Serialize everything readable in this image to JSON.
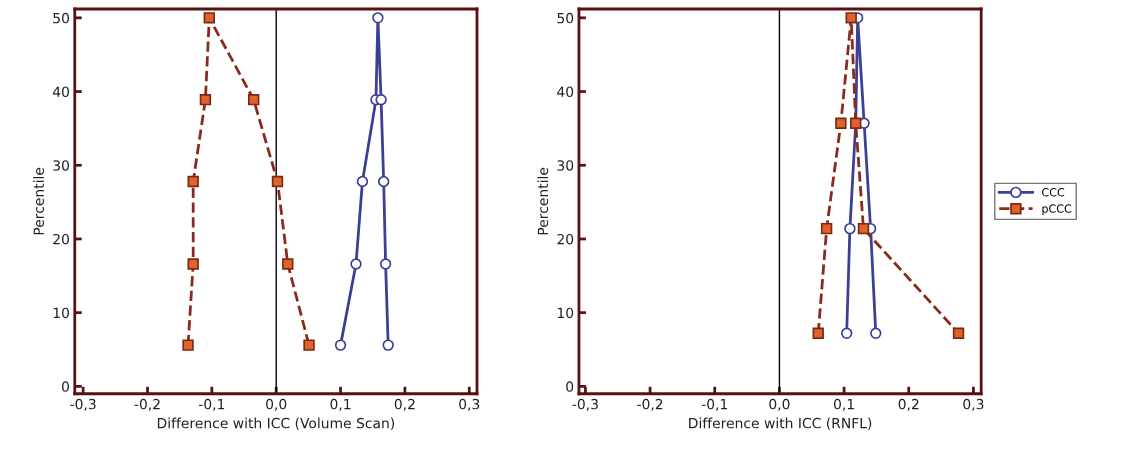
{
  "chart_data": [
    {
      "type": "line",
      "xlabel": "Difference with ICC (Volume Scan)",
      "ylabel": "Percentile",
      "xlim": [
        -0.313,
        0.312
      ],
      "ylim": [
        -1,
        51.2
      ],
      "xticks": [
        {
          "value": -0.3,
          "label": "-0,3"
        },
        {
          "value": -0.2,
          "label": "-0,2"
        },
        {
          "value": -0.1,
          "label": "-0,1"
        },
        {
          "value": 0.0,
          "label": "0,0"
        },
        {
          "value": 0.1,
          "label": "0,1"
        },
        {
          "value": 0.2,
          "label": "0,2"
        },
        {
          "value": 0.3,
          "label": "0,3"
        }
      ],
      "yticks": [
        0,
        10,
        20,
        30,
        40,
        50
      ],
      "grid": false,
      "legend": false,
      "ref_lines": [
        {
          "axis": "x",
          "value": 0,
          "color": "#000000"
        }
      ],
      "series": [
        {
          "color": "#3b3f96",
          "marker": "circle",
          "line_style": "solid",
          "x": [
            0.1,
            0.124,
            0.134,
            0.155,
            0.158,
            0.163,
            0.167,
            0.17,
            0.174
          ],
          "values": [
            5.6,
            16.6,
            27.8,
            38.9,
            50,
            38.9,
            27.8,
            16.6,
            5.6
          ]
        },
        {
          "color": "#e0622c",
          "marker": "square",
          "line_style": "dashed",
          "x": [
            -0.137,
            -0.129,
            -0.129,
            -0.11,
            -0.104,
            -0.035,
            0.002,
            0.018,
            0.051
          ],
          "values": [
            5.6,
            16.6,
            27.8,
            38.9,
            50,
            38.9,
            27.8,
            16.6,
            5.6
          ]
        }
      ]
    },
    {
      "type": "line",
      "xlabel": "Difference with ICC (RNFL)",
      "ylabel": "Percentile",
      "xlim": [
        -0.31,
        0.312
      ],
      "ylim": [
        -1,
        51.2
      ],
      "xticks": [
        {
          "value": -0.3,
          "label": "-0,3"
        },
        {
          "value": -0.2,
          "label": "-0,2"
        },
        {
          "value": -0.1,
          "label": "-0,1"
        },
        {
          "value": 0.0,
          "label": "0,0"
        },
        {
          "value": 0.1,
          "label": "0,1"
        },
        {
          "value": 0.2,
          "label": "0,2"
        },
        {
          "value": 0.3,
          "label": "0,3"
        }
      ],
      "yticks": [
        0,
        10,
        20,
        30,
        40,
        50
      ],
      "grid": false,
      "legend": "right",
      "ref_lines": [
        {
          "axis": "x",
          "value": 0,
          "color": "#000000"
        }
      ],
      "series": [
        {
          "name": "CCC",
          "color": "#3b3f96",
          "marker": "circle",
          "line_style": "solid",
          "x": [
            0.104,
            0.109,
            0.118,
            0.121,
            0.131,
            0.141,
            0.149
          ],
          "values": [
            7.2,
            21.4,
            35.7,
            50,
            35.7,
            21.4,
            7.2
          ]
        },
        {
          "name": "pCCC",
          "color": "#e0622c",
          "marker": "square",
          "line_style": "dashed",
          "x": [
            0.06,
            0.073,
            0.095,
            0.111,
            0.118,
            0.13,
            0.277
          ],
          "values": [
            7.2,
            21.4,
            35.7,
            50,
            35.7,
            21.4,
            7.2
          ]
        }
      ]
    }
  ]
}
